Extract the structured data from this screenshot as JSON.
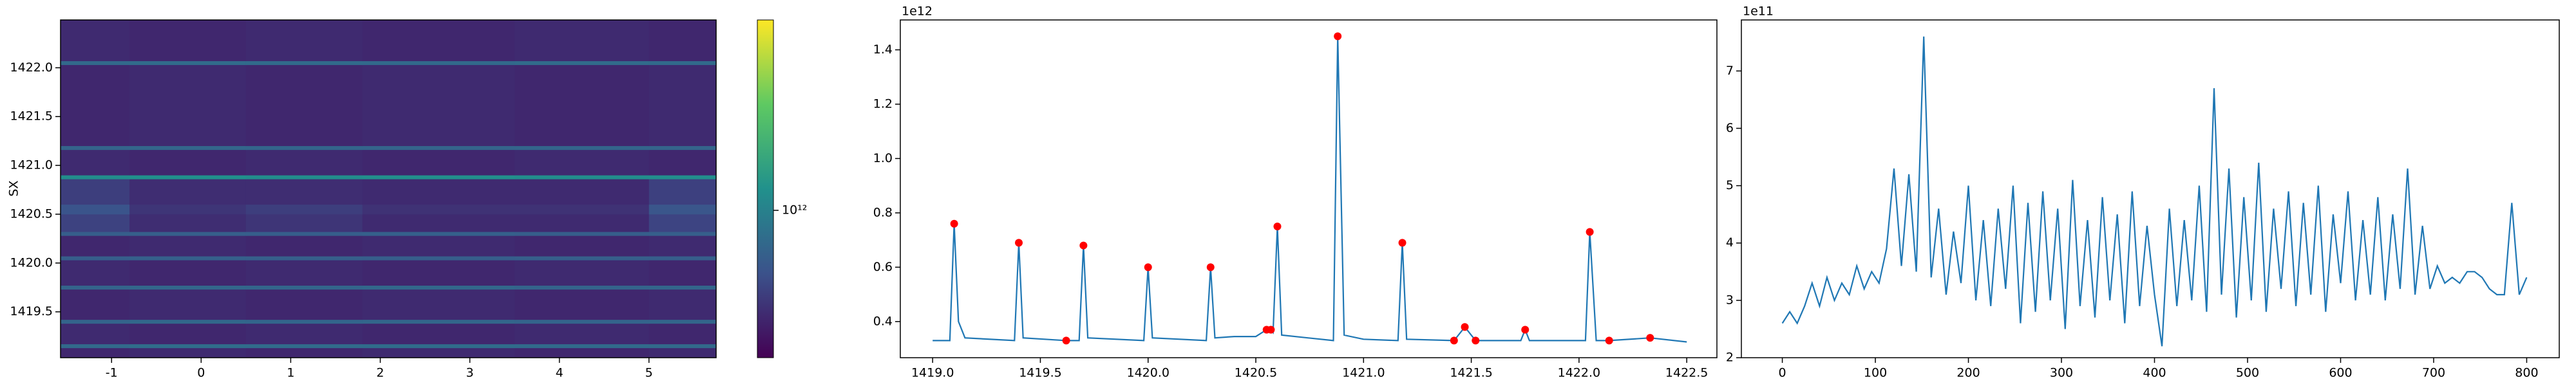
{
  "chart_data": [
    {
      "type": "heatmap",
      "ylabel": "SX",
      "x_edges": [
        -1.57,
        -0.8,
        0.5,
        1.8,
        3.5,
        5.0,
        5.75
      ],
      "y_edges": [
        1419.03,
        1419.13,
        1419.17,
        1419.38,
        1419.42,
        1419.73,
        1419.77,
        1420.03,
        1420.07,
        1420.28,
        1420.32,
        1420.5,
        1420.6,
        1420.86,
        1420.9,
        1421.16,
        1421.2,
        1422.03,
        1422.07,
        1422.49
      ],
      "z": [
        [
          310000000000.0,
          320000000000.0,
          310000000000.0,
          320000000000.0,
          310000000000.0,
          320000000000.0
        ],
        [
          700000000000.0,
          740000000000.0,
          720000000000.0,
          730000000000.0,
          710000000000.0,
          700000000000.0
        ],
        [
          320000000000.0,
          310000000000.0,
          320000000000.0,
          310000000000.0,
          320000000000.0,
          310000000000.0
        ],
        [
          650000000000.0,
          680000000000.0,
          660000000000.0,
          670000000000.0,
          650000000000.0,
          660000000000.0
        ],
        [
          310000000000.0,
          320000000000.0,
          310000000000.0,
          320000000000.0,
          310000000000.0,
          320000000000.0
        ],
        [
          650000000000.0,
          670000000000.0,
          660000000000.0,
          680000000000.0,
          650000000000.0,
          660000000000.0
        ],
        [
          320000000000.0,
          310000000000.0,
          320000000000.0,
          310000000000.0,
          320000000000.0,
          310000000000.0
        ],
        [
          600000000000.0,
          620000000000.0,
          610000000000.0,
          600000000000.0,
          610000000000.0,
          600000000000.0
        ],
        [
          310000000000.0,
          320000000000.0,
          310000000000.0,
          320000000000.0,
          310000000000.0,
          320000000000.0
        ],
        [
          600000000000.0,
          610000000000.0,
          600000000000.0,
          620000000000.0,
          600000000000.0,
          610000000000.0
        ],
        [
          420000000000.0,
          330000000000.0,
          360000000000.0,
          320000000000.0,
          320000000000.0,
          430000000000.0
        ],
        [
          520000000000.0,
          360000000000.0,
          400000000000.0,
          350000000000.0,
          350000000000.0,
          530000000000.0
        ],
        [
          400000000000.0,
          330000000000.0,
          330000000000.0,
          320000000000.0,
          320000000000.0,
          410000000000.0
        ],
        [
          1200000000000.0,
          1250000000000.0,
          1200000000000.0,
          1220000000000.0,
          1200000000000.0,
          1210000000000.0
        ],
        [
          320000000000.0,
          310000000000.0,
          320000000000.0,
          310000000000.0,
          320000000000.0,
          310000000000.0
        ],
        [
          650000000000.0,
          670000000000.0,
          660000000000.0,
          650000000000.0,
          660000000000.0,
          650000000000.0
        ],
        [
          310000000000.0,
          320000000000.0,
          310000000000.0,
          320000000000.0,
          310000000000.0,
          320000000000.0
        ],
        [
          700000000000.0,
          720000000000.0,
          710000000000.0,
          700000000000.0,
          720000000000.0,
          710000000000.0
        ],
        [
          320000000000.0,
          310000000000.0,
          320000000000.0,
          310000000000.0,
          320000000000.0,
          310000000000.0
        ]
      ],
      "xlim": [
        -1.57,
        5.75
      ],
      "ylim": [
        1419.03,
        1422.49
      ],
      "xticks": [
        -1,
        0,
        1,
        2,
        3,
        4,
        5
      ],
      "yticks": [
        1419.5,
        {
          "value": 1420,
          "label": "1420.0"
        },
        1420.5,
        {
          "value": 1421,
          "label": "1421.0"
        },
        1421.5,
        {
          "value": 1422,
          "label": "1422.0"
        }
      ],
      "colorbar": {
        "scale": "log",
        "lim": [
          200000000000.0,
          8000000000000.0
        ],
        "ticks": [
          {
            "value": 1000000000000.0,
            "label": "10¹²"
          }
        ]
      }
    },
    {
      "type": "line",
      "color": "#1f77b4",
      "y_offset_label": "1e12",
      "x": [
        1419.0,
        1419.08,
        1419.1,
        1419.12,
        1419.15,
        1419.38,
        1419.4,
        1419.42,
        1419.62,
        1419.68,
        1419.7,
        1419.72,
        1419.98,
        1420.0,
        1420.02,
        1420.27,
        1420.29,
        1420.31,
        1420.4,
        1420.5,
        1420.55,
        1420.57,
        1420.58,
        1420.6,
        1420.62,
        1420.86,
        1420.88,
        1420.91,
        1421.0,
        1421.16,
        1421.18,
        1421.2,
        1421.42,
        1421.47,
        1421.52,
        1421.73,
        1421.75,
        1421.77,
        1422.03,
        1422.05,
        1422.08,
        1422.14,
        1422.33,
        1422.5
      ],
      "values": [
        330000000000.0,
        330000000000.0,
        760000000000.0,
        400000000000.0,
        340000000000.0,
        330000000000.0,
        690000000000.0,
        340000000000.0,
        330000000000.0,
        330000000000.0,
        680000000000.0,
        340000000000.0,
        330000000000.0,
        600000000000.0,
        340000000000.0,
        330000000000.0,
        600000000000.0,
        340000000000.0,
        345000000000.0,
        345000000000.0,
        370000000000.0,
        370000000000.0,
        360000000000.0,
        750000000000.0,
        350000000000.0,
        330000000000.0,
        1450000000000.0,
        350000000000.0,
        335000000000.0,
        330000000000.0,
        690000000000.0,
        335000000000.0,
        330000000000.0,
        380000000000.0,
        330000000000.0,
        330000000000.0,
        370000000000.0,
        330000000000.0,
        330000000000.0,
        730000000000.0,
        330000000000.0,
        330000000000.0,
        340000000000.0,
        325000000000.0
      ],
      "markers": {
        "color": "#ff0000",
        "x": [
          1419.1,
          1419.4,
          1419.62,
          1419.7,
          1420.0,
          1420.29,
          1420.55,
          1420.57,
          1420.6,
          1420.88,
          1421.18,
          1421.42,
          1421.47,
          1421.52,
          1421.75,
          1422.05,
          1422.14,
          1422.33
        ],
        "values": [
          760000000000.0,
          690000000000.0,
          330000000000.0,
          680000000000.0,
          600000000000.0,
          600000000000.0,
          370000000000.0,
          370000000000.0,
          750000000000.0,
          1450000000000.0,
          690000000000.0,
          330000000000.0,
          380000000000.0,
          330000000000.0,
          370000000000.0,
          730000000000.0,
          330000000000.0,
          340000000000.0
        ]
      },
      "xlim": [
        1418.85,
        1422.64
      ],
      "ylim": [
        267000000000.0,
        1510000000000.0
      ],
      "xticks": [
        {
          "value": 1419,
          "label": "1419.0"
        },
        1419.5,
        {
          "value": 1420,
          "label": "1420.0"
        },
        1420.5,
        {
          "value": 1421,
          "label": "1421.0"
        },
        1421.5,
        {
          "value": 1422,
          "label": "1422.0"
        },
        1422.5
      ],
      "yticks": [
        {
          "value": 400000000000.0,
          "label": "0.4"
        },
        {
          "value": 600000000000.0,
          "label": "0.6"
        },
        {
          "value": 800000000000.0,
          "label": "0.8"
        },
        {
          "value": 1000000000000.0,
          "label": "1.0"
        },
        {
          "value": 1200000000000.0,
          "label": "1.2"
        },
        {
          "value": 1400000000000.0,
          "label": "1.4"
        }
      ]
    },
    {
      "type": "line",
      "color": "#1f77b4",
      "y_offset_label": "1e11",
      "x": [
        0,
        8,
        16,
        24,
        32,
        40,
        48,
        56,
        64,
        72,
        80,
        88,
        96,
        104,
        112,
        120,
        128,
        136,
        144,
        152,
        160,
        168,
        176,
        184,
        192,
        200,
        208,
        216,
        224,
        232,
        240,
        248,
        256,
        264,
        272,
        280,
        288,
        296,
        304,
        312,
        320,
        328,
        336,
        344,
        352,
        360,
        368,
        376,
        384,
        392,
        400,
        408,
        416,
        424,
        432,
        440,
        448,
        456,
        464,
        472,
        480,
        488,
        496,
        504,
        512,
        520,
        528,
        536,
        544,
        552,
        560,
        568,
        576,
        584,
        592,
        600,
        608,
        616,
        624,
        632,
        640,
        648,
        656,
        664,
        672,
        680,
        688,
        696,
        704,
        712,
        720,
        728,
        736,
        744,
        752,
        760,
        768,
        776,
        784,
        792,
        800
      ],
      "values": [
        260000000000.0,
        280000000000.0,
        260000000000.0,
        290000000000.0,
        330000000000.0,
        290000000000.0,
        340000000000.0,
        300000000000.0,
        330000000000.0,
        310000000000.0,
        360000000000.0,
        320000000000.0,
        350000000000.0,
        330000000000.0,
        390000000000.0,
        530000000000.0,
        360000000000.0,
        520000000000.0,
        350000000000.0,
        760000000000.0,
        340000000000.0,
        460000000000.0,
        310000000000.0,
        420000000000.0,
        330000000000.0,
        500000000000.0,
        300000000000.0,
        440000000000.0,
        290000000000.0,
        460000000000.0,
        320000000000.0,
        500000000000.0,
        260000000000.0,
        470000000000.0,
        280000000000.0,
        490000000000.0,
        300000000000.0,
        460000000000.0,
        250000000000.0,
        510000000000.0,
        290000000000.0,
        440000000000.0,
        270000000000.0,
        480000000000.0,
        300000000000.0,
        450000000000.0,
        260000000000.0,
        490000000000.0,
        290000000000.0,
        430000000000.0,
        310000000000.0,
        220000000000.0,
        460000000000.0,
        290000000000.0,
        440000000000.0,
        300000000000.0,
        500000000000.0,
        280000000000.0,
        670000000000.0,
        310000000000.0,
        530000000000.0,
        270000000000.0,
        480000000000.0,
        300000000000.0,
        540000000000.0,
        280000000000.0,
        460000000000.0,
        320000000000.0,
        490000000000.0,
        290000000000.0,
        470000000000.0,
        310000000000.0,
        500000000000.0,
        280000000000.0,
        450000000000.0,
        330000000000.0,
        490000000000.0,
        300000000000.0,
        440000000000.0,
        310000000000.0,
        480000000000.0,
        300000000000.0,
        450000000000.0,
        320000000000.0,
        530000000000.0,
        310000000000.0,
        430000000000.0,
        320000000000.0,
        360000000000.0,
        330000000000.0,
        340000000000.0,
        330000000000.0,
        350000000000.0,
        350000000000.0,
        340000000000.0,
        320000000000.0,
        310000000000.0,
        310000000000.0,
        470000000000.0,
        310000000000.0,
        340000000000.0
      ],
      "xlim": [
        -44,
        835
      ],
      "ylim": [
        200000000000.0,
        789000000000.0
      ],
      "xticks": [
        0,
        100,
        200,
        300,
        400,
        500,
        600,
        700,
        800
      ],
      "yticks": [
        {
          "value": 200000000000.0,
          "label": "2"
        },
        {
          "value": 300000000000.0,
          "label": "3"
        },
        {
          "value": 400000000000.0,
          "label": "4"
        },
        {
          "value": 500000000000.0,
          "label": "5"
        },
        {
          "value": 600000000000.0,
          "label": "6"
        },
        {
          "value": 700000000000.0,
          "label": "7"
        }
      ]
    }
  ]
}
